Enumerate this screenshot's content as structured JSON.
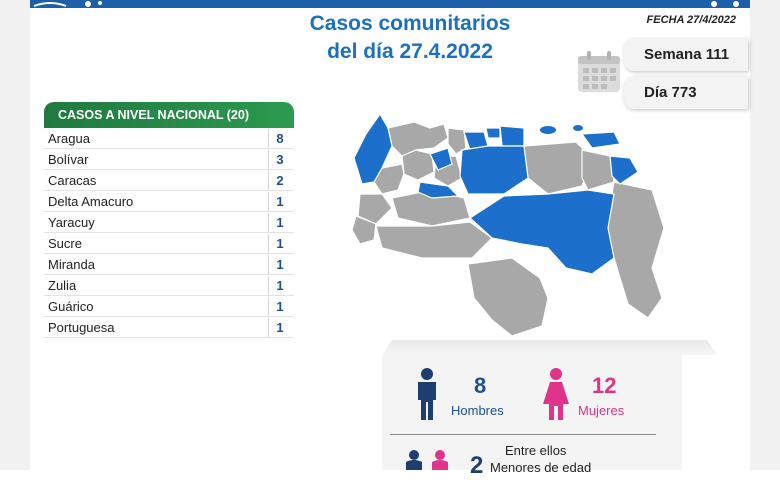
{
  "header": {
    "title_line1": "Casos comunitarios",
    "title_line2": "del día 27.4.2022",
    "fecha": "FECHA 27/4/2022",
    "semana": "Semana 111",
    "dia": "Día 773"
  },
  "colors": {
    "blue": "#1b70c0",
    "map_blue": "#1c6fcb",
    "map_gray": "#a8a8a8",
    "green": "#1f7a3f",
    "pink": "#e0338a",
    "navy": "#1d3e6e"
  },
  "table": {
    "title": "CASOS A NIVEL NACIONAL  (20)",
    "rows": [
      {
        "name": "Aragua",
        "value": "8"
      },
      {
        "name": "Bolívar",
        "value": "3"
      },
      {
        "name": "Caracas",
        "value": "2"
      },
      {
        "name": "Delta Amacuro",
        "value": "1"
      },
      {
        "name": "Yaracuy",
        "value": "1"
      },
      {
        "name": "Sucre",
        "value": "1"
      },
      {
        "name": "Miranda",
        "value": "1"
      },
      {
        "name": "Zulia",
        "value": "1"
      },
      {
        "name": "Guárico",
        "value": "1"
      },
      {
        "name": "Portuguesa",
        "value": "1"
      }
    ]
  },
  "stats": {
    "men_count": "8",
    "men_label": "Hombres",
    "women_count": "12",
    "women_label": "Mujeres",
    "minors_intro": "Entre ellos",
    "minors_count": "2",
    "minors_label": "Menores de edad"
  },
  "icons": [
    "calendar-icon",
    "man-icon",
    "woman-icon",
    "child-icons"
  ]
}
